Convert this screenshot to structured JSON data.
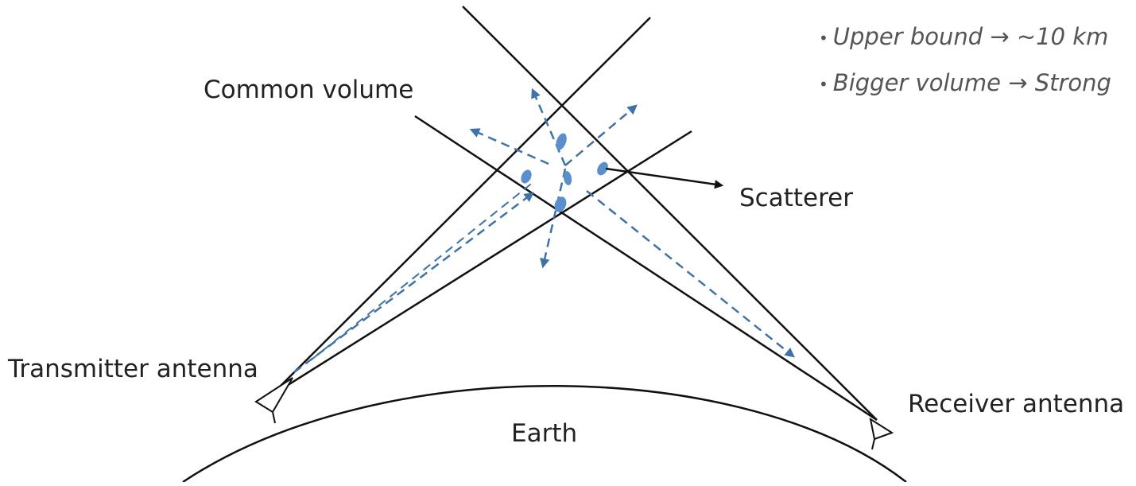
{
  "labels": {
    "common_volume": "Common volume",
    "scatterer": "Scatterer",
    "transmitter": "Transmitter antenna",
    "receiver": "Receiver antenna",
    "earth": "Earth"
  },
  "bullets": [
    {
      "bullet": "•",
      "text": "Upper bound → ~10 km"
    },
    {
      "bullet": "•",
      "text": "Bigger volume → Strong"
    }
  ],
  "colors": {
    "line": "#111111",
    "ray": "#3f73a8",
    "scatter_blob": "#5b8fcc",
    "bullet_text": "#555555"
  }
}
